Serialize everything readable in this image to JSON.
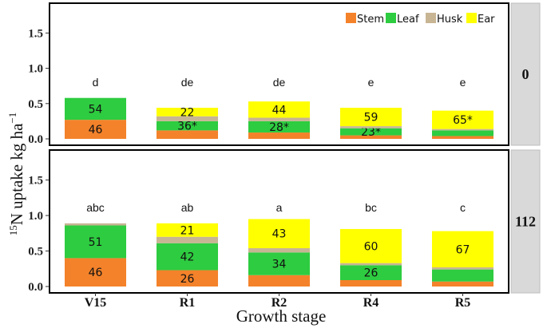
{
  "chart_data": {
    "type": "bar",
    "stacked": true,
    "categories": [
      "V15",
      "R1",
      "R2",
      "R4",
      "R5"
    ],
    "xlabel": "Growth stage",
    "ylabel": "15N uptake kg ha-1",
    "ylabel_parts": {
      "sup": "15",
      "main": "N uptake kg ha",
      "exp": "−1"
    },
    "ylim": [
      0,
      1.9
    ],
    "yticks": [
      "0.0",
      "0.5",
      "1.0",
      "1.5"
    ],
    "ytick_values": [
      0,
      0.5,
      1.0,
      1.5
    ],
    "legend": {
      "position": "top-right",
      "items": [
        {
          "name": "Stem",
          "color": "#F4822A"
        },
        {
          "name": "Leaf",
          "color": "#2ECC40"
        },
        {
          "name": "Husk",
          "color": "#C8B594"
        },
        {
          "name": "Ear",
          "color": "#FFFF00"
        }
      ]
    },
    "panels": [
      {
        "strip": "0",
        "significance": [
          "d",
          "de",
          "de",
          "e",
          "e"
        ],
        "series": [
          {
            "name": "Stem",
            "values": [
              0.27,
              0.12,
              0.09,
              0.05,
              0.04
            ]
          },
          {
            "name": "Leaf",
            "values": [
              0.31,
              0.13,
              0.16,
              0.1,
              0.08
            ]
          },
          {
            "name": "Husk",
            "values": [
              0.0,
              0.07,
              0.05,
              0.03,
              0.02
            ]
          },
          {
            "name": "Ear",
            "values": [
              0.0,
              0.12,
              0.23,
              0.26,
              0.26
            ]
          }
        ],
        "segment_labels": {
          "Stem": [
            "46",
            "",
            "",
            "",
            ""
          ],
          "Leaf": [
            "54",
            "36*",
            "28*",
            "23*",
            ""
          ],
          "Husk": [
            "",
            "",
            "",
            "",
            ""
          ],
          "Ear": [
            "",
            "22",
            "44",
            "59",
            "65*"
          ]
        }
      },
      {
        "strip": "112",
        "significance": [
          "abc",
          "ab",
          "a",
          "bc",
          "c"
        ],
        "series": [
          {
            "name": "Stem",
            "values": [
              0.4,
              0.23,
              0.16,
              0.09,
              0.07
            ]
          },
          {
            "name": "Leaf",
            "values": [
              0.46,
              0.38,
              0.32,
              0.21,
              0.17
            ]
          },
          {
            "name": "Husk",
            "values": [
              0.03,
              0.09,
              0.06,
              0.03,
              0.03
            ]
          },
          {
            "name": "Ear",
            "values": [
              0.0,
              0.19,
              0.41,
              0.48,
              0.51
            ]
          }
        ],
        "segment_labels": {
          "Stem": [
            "46",
            "26",
            "",
            "",
            ""
          ],
          "Leaf": [
            "51",
            "42",
            "34",
            "26",
            ""
          ],
          "Husk": [
            "",
            "",
            "",
            "",
            ""
          ],
          "Ear": [
            "",
            "21",
            "43",
            "60",
            "67"
          ]
        }
      }
    ]
  }
}
